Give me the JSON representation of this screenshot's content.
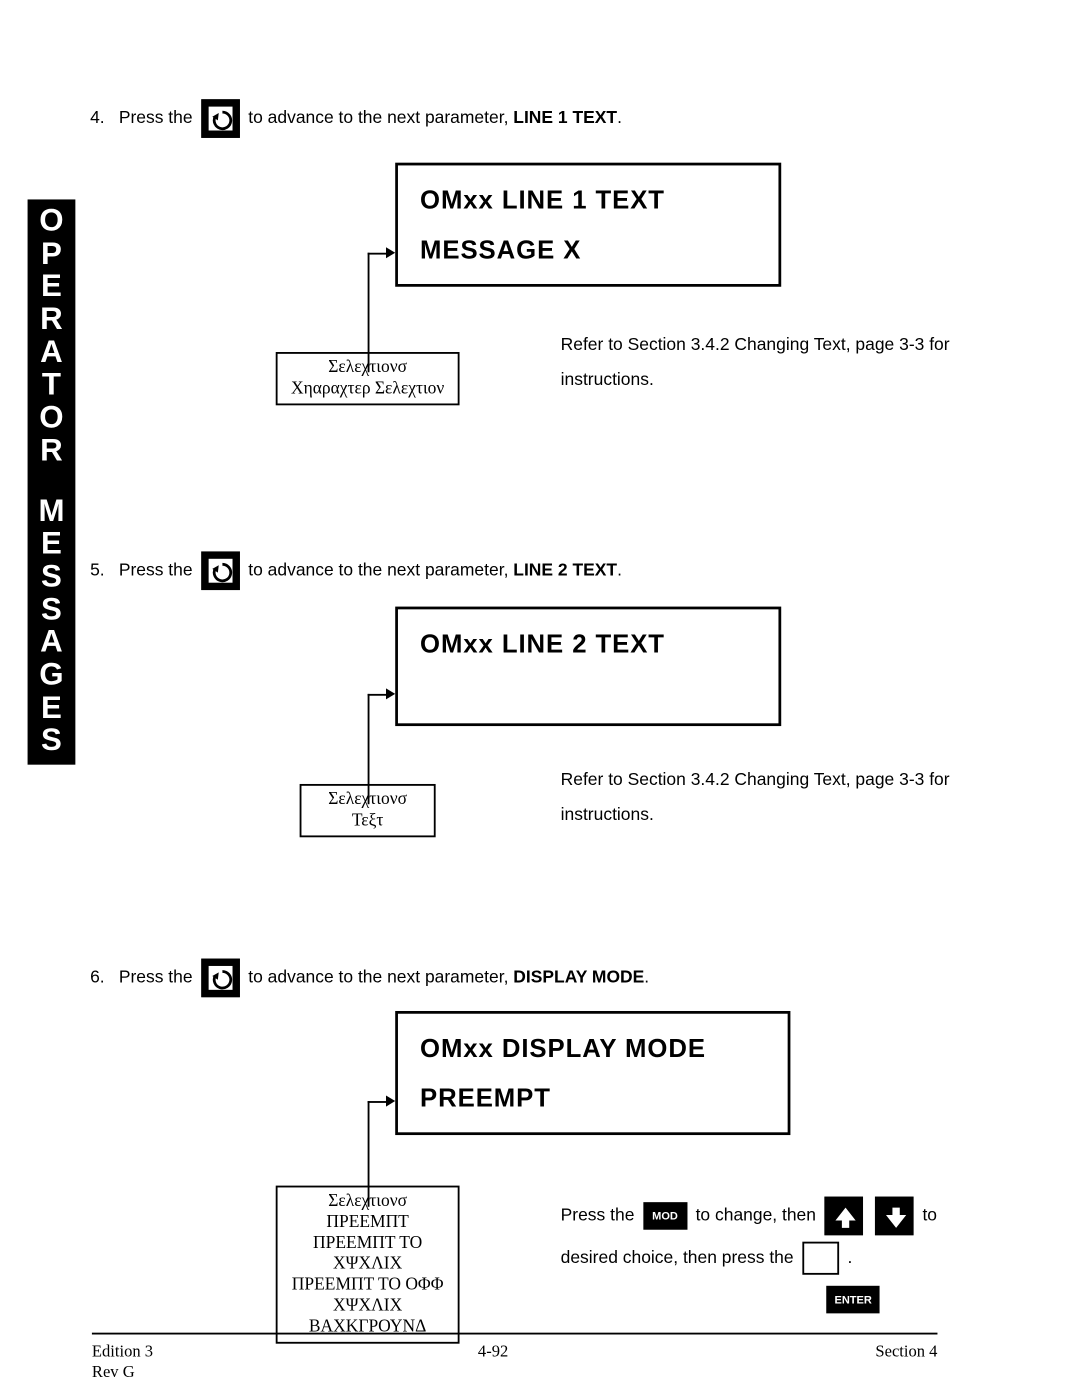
{
  "sideTab": {
    "word1": "OPERATOR",
    "word2": "MESSAGES"
  },
  "step4": {
    "num": "4.",
    "pre": "Press the",
    "post": "to advance to the next parameter,",
    "param": "LINE 1 TEXT",
    "display": {
      "line1": "OMxx  LINE  1  TEXT",
      "line2": "MESSAGE  X"
    },
    "selBox": {
      "l1": "Σελεχτιονσ",
      "l2": "Χηαραχτερ  Σελεχτιον"
    },
    "refer": "Refer to Section 3.4.2 Changing Text, page 3-3 for instructions."
  },
  "step5": {
    "num": "5.",
    "pre": "Press the",
    "post": "to advance to the next parameter,",
    "param": "LINE 2 TEXT",
    "display": {
      "line1": "OMxx  LINE  2  TEXT",
      "line2": ""
    },
    "selBox": {
      "l1": "Σελεχτιονσ",
      "l2": "Τεξτ"
    },
    "refer": "Refer to Section 3.4.2 Changing Text, page 3-3 for instructions."
  },
  "step6": {
    "num": "6.",
    "pre": "Press the",
    "post": "to advance to the next parameter,",
    "param": "DISPLAY MODE",
    "display": {
      "line1": "OMxx  DISPLAY  MODE",
      "line2": "PREEMPT"
    },
    "selBox": {
      "l1": "Σελεχτιονσ",
      "l2": "ΠΡΕΕΜΠΤ",
      "l3": "ΠΡΕΕΜΠΤ ΤΟ ΧΨΧΛΙΧ",
      "l4": "ΠΡΕΕΜΠΤ ΤΟ ΟΦΦ",
      "l5": "ΧΨΧΛΙΧ",
      "l6": "ΒΑΧΚΓΡΟΥΝΔ"
    },
    "seq": {
      "a": "Press the",
      "b": "to change, then",
      "c": "to",
      "d": "desired choice, then press the",
      "e": ".",
      "mod": "MOD",
      "enter": "ENTER"
    }
  },
  "footer": {
    "left1": "Edition 3",
    "left2": "Rev G",
    "center": "4-92",
    "right": "Section 4"
  }
}
